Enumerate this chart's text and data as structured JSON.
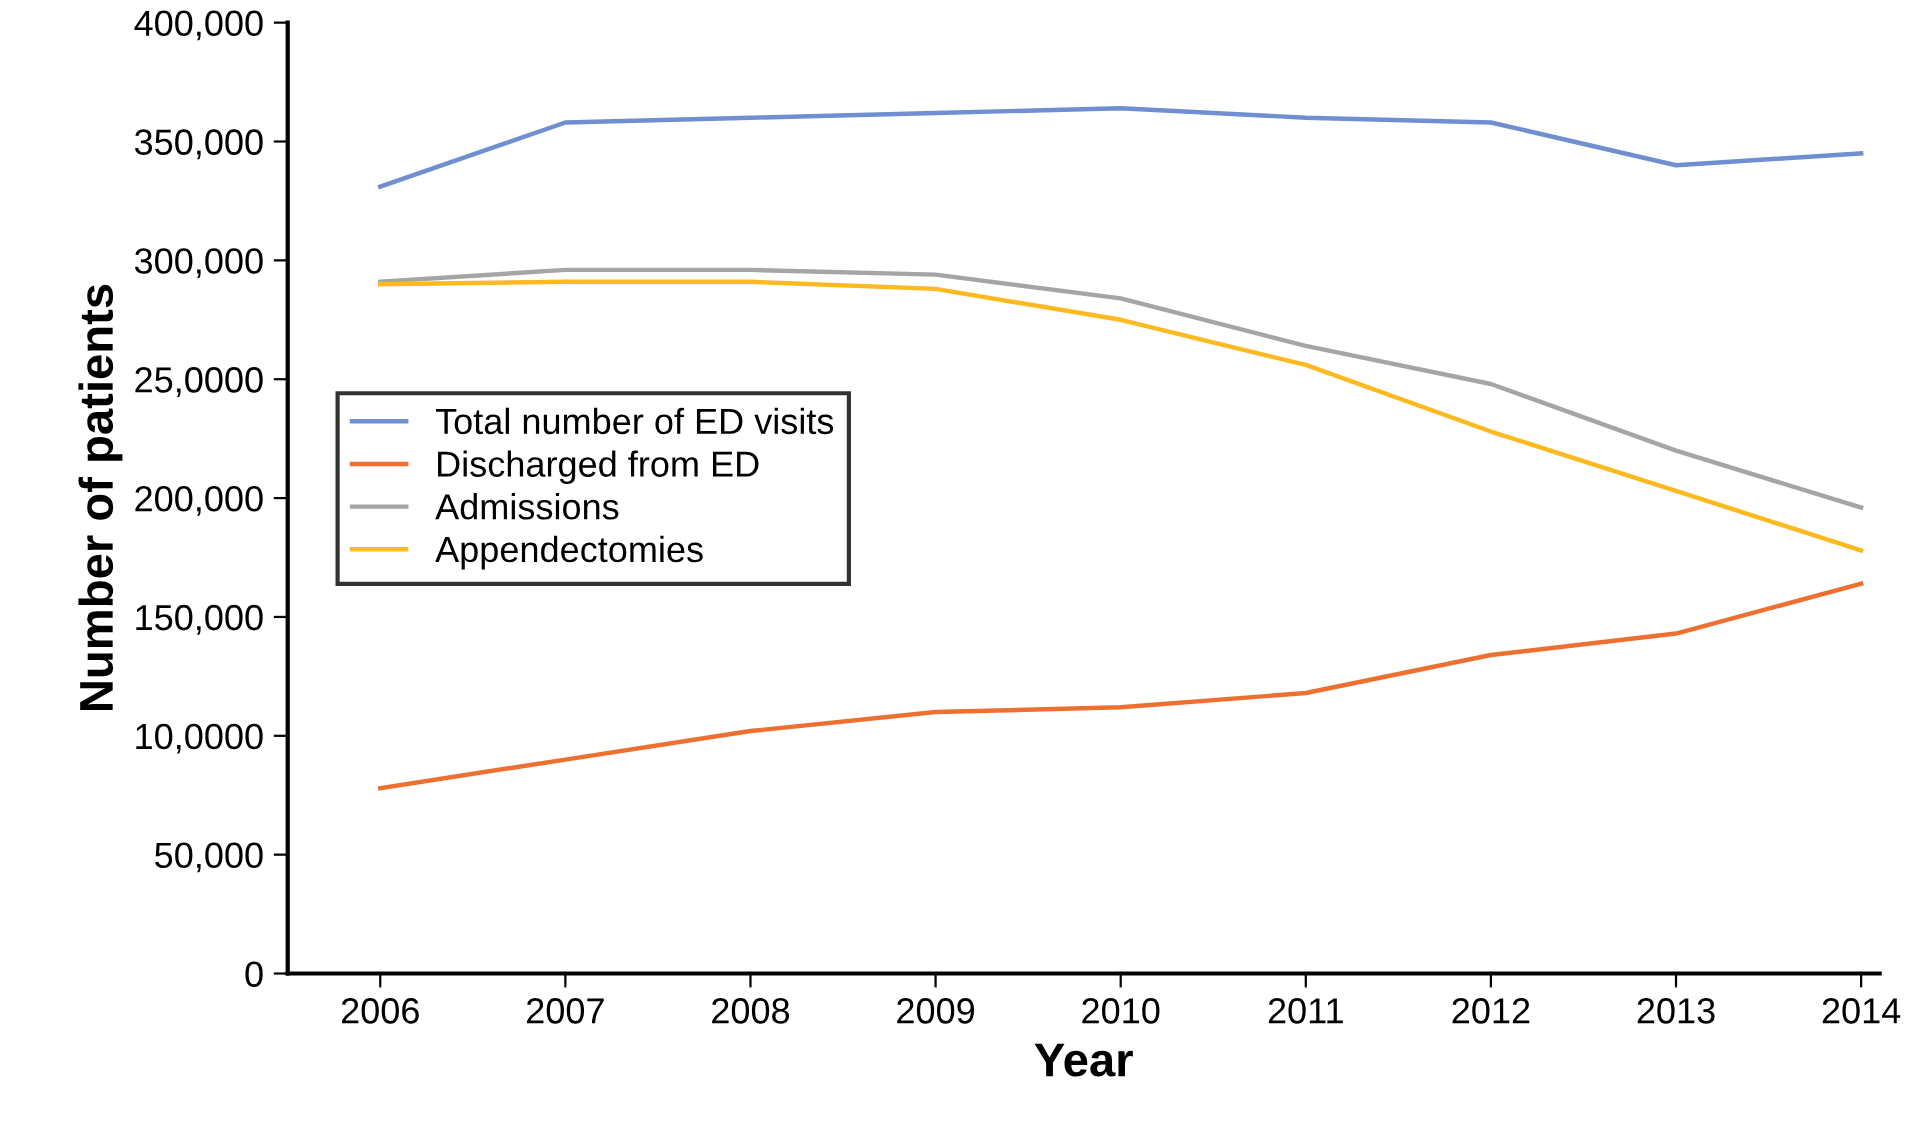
{
  "chart_data": {
    "type": "line",
    "xlabel": "Year",
    "ylabel": "Number of patients",
    "x": [
      2006,
      2007,
      2008,
      2009,
      2010,
      2011,
      2012,
      2013,
      2014
    ],
    "series": [
      {
        "name": "Total number of ED visits",
        "color": "#6f8fd0",
        "values": [
          331000,
          358000,
          360000,
          362000,
          364000,
          360000,
          358000,
          340000,
          345000
        ]
      },
      {
        "name": "Discharged from ED",
        "color": "#ed7030",
        "values": [
          78000,
          90000,
          102000,
          110000,
          112000,
          118000,
          134000,
          143000,
          164000
        ]
      },
      {
        "name": "Admissions",
        "color": "#a5a5a5",
        "values": [
          291000,
          296000,
          296000,
          294000,
          284000,
          264000,
          248000,
          220000,
          196000
        ]
      },
      {
        "name": "Appendectomies",
        "color": "#fcb920",
        "values": [
          290000,
          291000,
          291000,
          288000,
          275000,
          256000,
          228000,
          203000,
          178000
        ]
      }
    ],
    "xlim": [
      2005.5,
      2014.1
    ],
    "xticks": [
      2006,
      2007,
      2008,
      2009,
      2010,
      2011,
      2012,
      2013,
      2014
    ],
    "ylim": [
      0,
      400000
    ],
    "yticks": [
      {
        "value": 0,
        "label": "0"
      },
      {
        "value": 50000,
        "label": "50,000"
      },
      {
        "value": 100000,
        "label": "10,0000"
      },
      {
        "value": 150000,
        "label": "150,000"
      },
      {
        "value": 200000,
        "label": "200,000"
      },
      {
        "value": 250000,
        "label": "25,0000"
      },
      {
        "value": 300000,
        "label": "300,000"
      },
      {
        "value": 350000,
        "label": "350,000"
      },
      {
        "value": 400000,
        "label": "400,000"
      }
    ],
    "grid": false,
    "legend": "left",
    "marker": "none",
    "line_style": "solid"
  }
}
